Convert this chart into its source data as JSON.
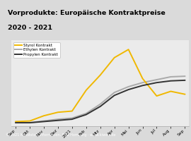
{
  "title_line1": "Vorprodukte: Europäische Kontraktpreise",
  "title_line2": "2020 - 2021",
  "title_bg_color": "#F0B800",
  "title_fontsize": 6.8,
  "plot_bg_color": "#EBEBEB",
  "outer_bg_color": "#DADADA",
  "footer_text": "© 2021 Kunststoff Information, Bad Homburg · www.kiweb.de",
  "footer_bg_color": "#888888",
  "legend": [
    "Styrol Kontrakt",
    "Ethylen Kontrakt",
    "Propylen Kontrakt"
  ],
  "legend_colors": [
    "#F0B800",
    "#AAAAAA",
    "#333333"
  ],
  "x_labels": [
    "Sep",
    "Okt",
    "Nov",
    "Dez",
    "2021",
    "Feb",
    "Mrz",
    "Apr",
    "Mai",
    "Jun",
    "Jul",
    "Aug",
    "Sep"
  ],
  "styrol": [
    8,
    9,
    18,
    24,
    26,
    62,
    88,
    118,
    132,
    82,
    52,
    60,
    55
  ],
  "ethylen": [
    6,
    6,
    9,
    12,
    14,
    22,
    38,
    58,
    68,
    75,
    80,
    85,
    86
  ],
  "propylen": [
    6,
    6,
    8,
    10,
    12,
    20,
    34,
    53,
    63,
    70,
    75,
    78,
    79
  ],
  "ylim": [
    0,
    148
  ],
  "line_width": 1.4
}
